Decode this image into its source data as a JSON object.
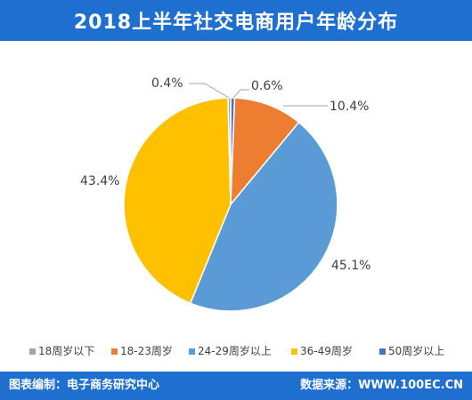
{
  "header": {
    "title": "2018上半年社交电商用户年龄分布"
  },
  "footer": {
    "left": "图表编制：电子商务研究中心",
    "right": "数据来源：WWW.100EC.CN"
  },
  "chart_data": {
    "type": "pie",
    "title": "2018上半年社交电商用户年龄分布",
    "legend_position": "bottom",
    "start_angle_deg": -90,
    "direction": "clockwise",
    "slices": [
      {
        "label": "50周岁以上",
        "value": 0.6,
        "display": "0.6%",
        "color": "#4472c4"
      },
      {
        "label": "18-23周岁",
        "value": 10.4,
        "display": "10.4%",
        "color": "#ed7d31"
      },
      {
        "label": "24-29周岁以上",
        "value": 45.1,
        "display": "45.1%",
        "color": "#5b9bd5"
      },
      {
        "label": "36-49周岁",
        "value": 43.4,
        "display": "43.4%",
        "color": "#ffc000"
      },
      {
        "label": "18周岁以下",
        "value": 0.4,
        "display": "0.4%",
        "color": "#a5a5a5"
      }
    ],
    "legend_order": [
      4,
      1,
      2,
      3,
      0
    ]
  }
}
